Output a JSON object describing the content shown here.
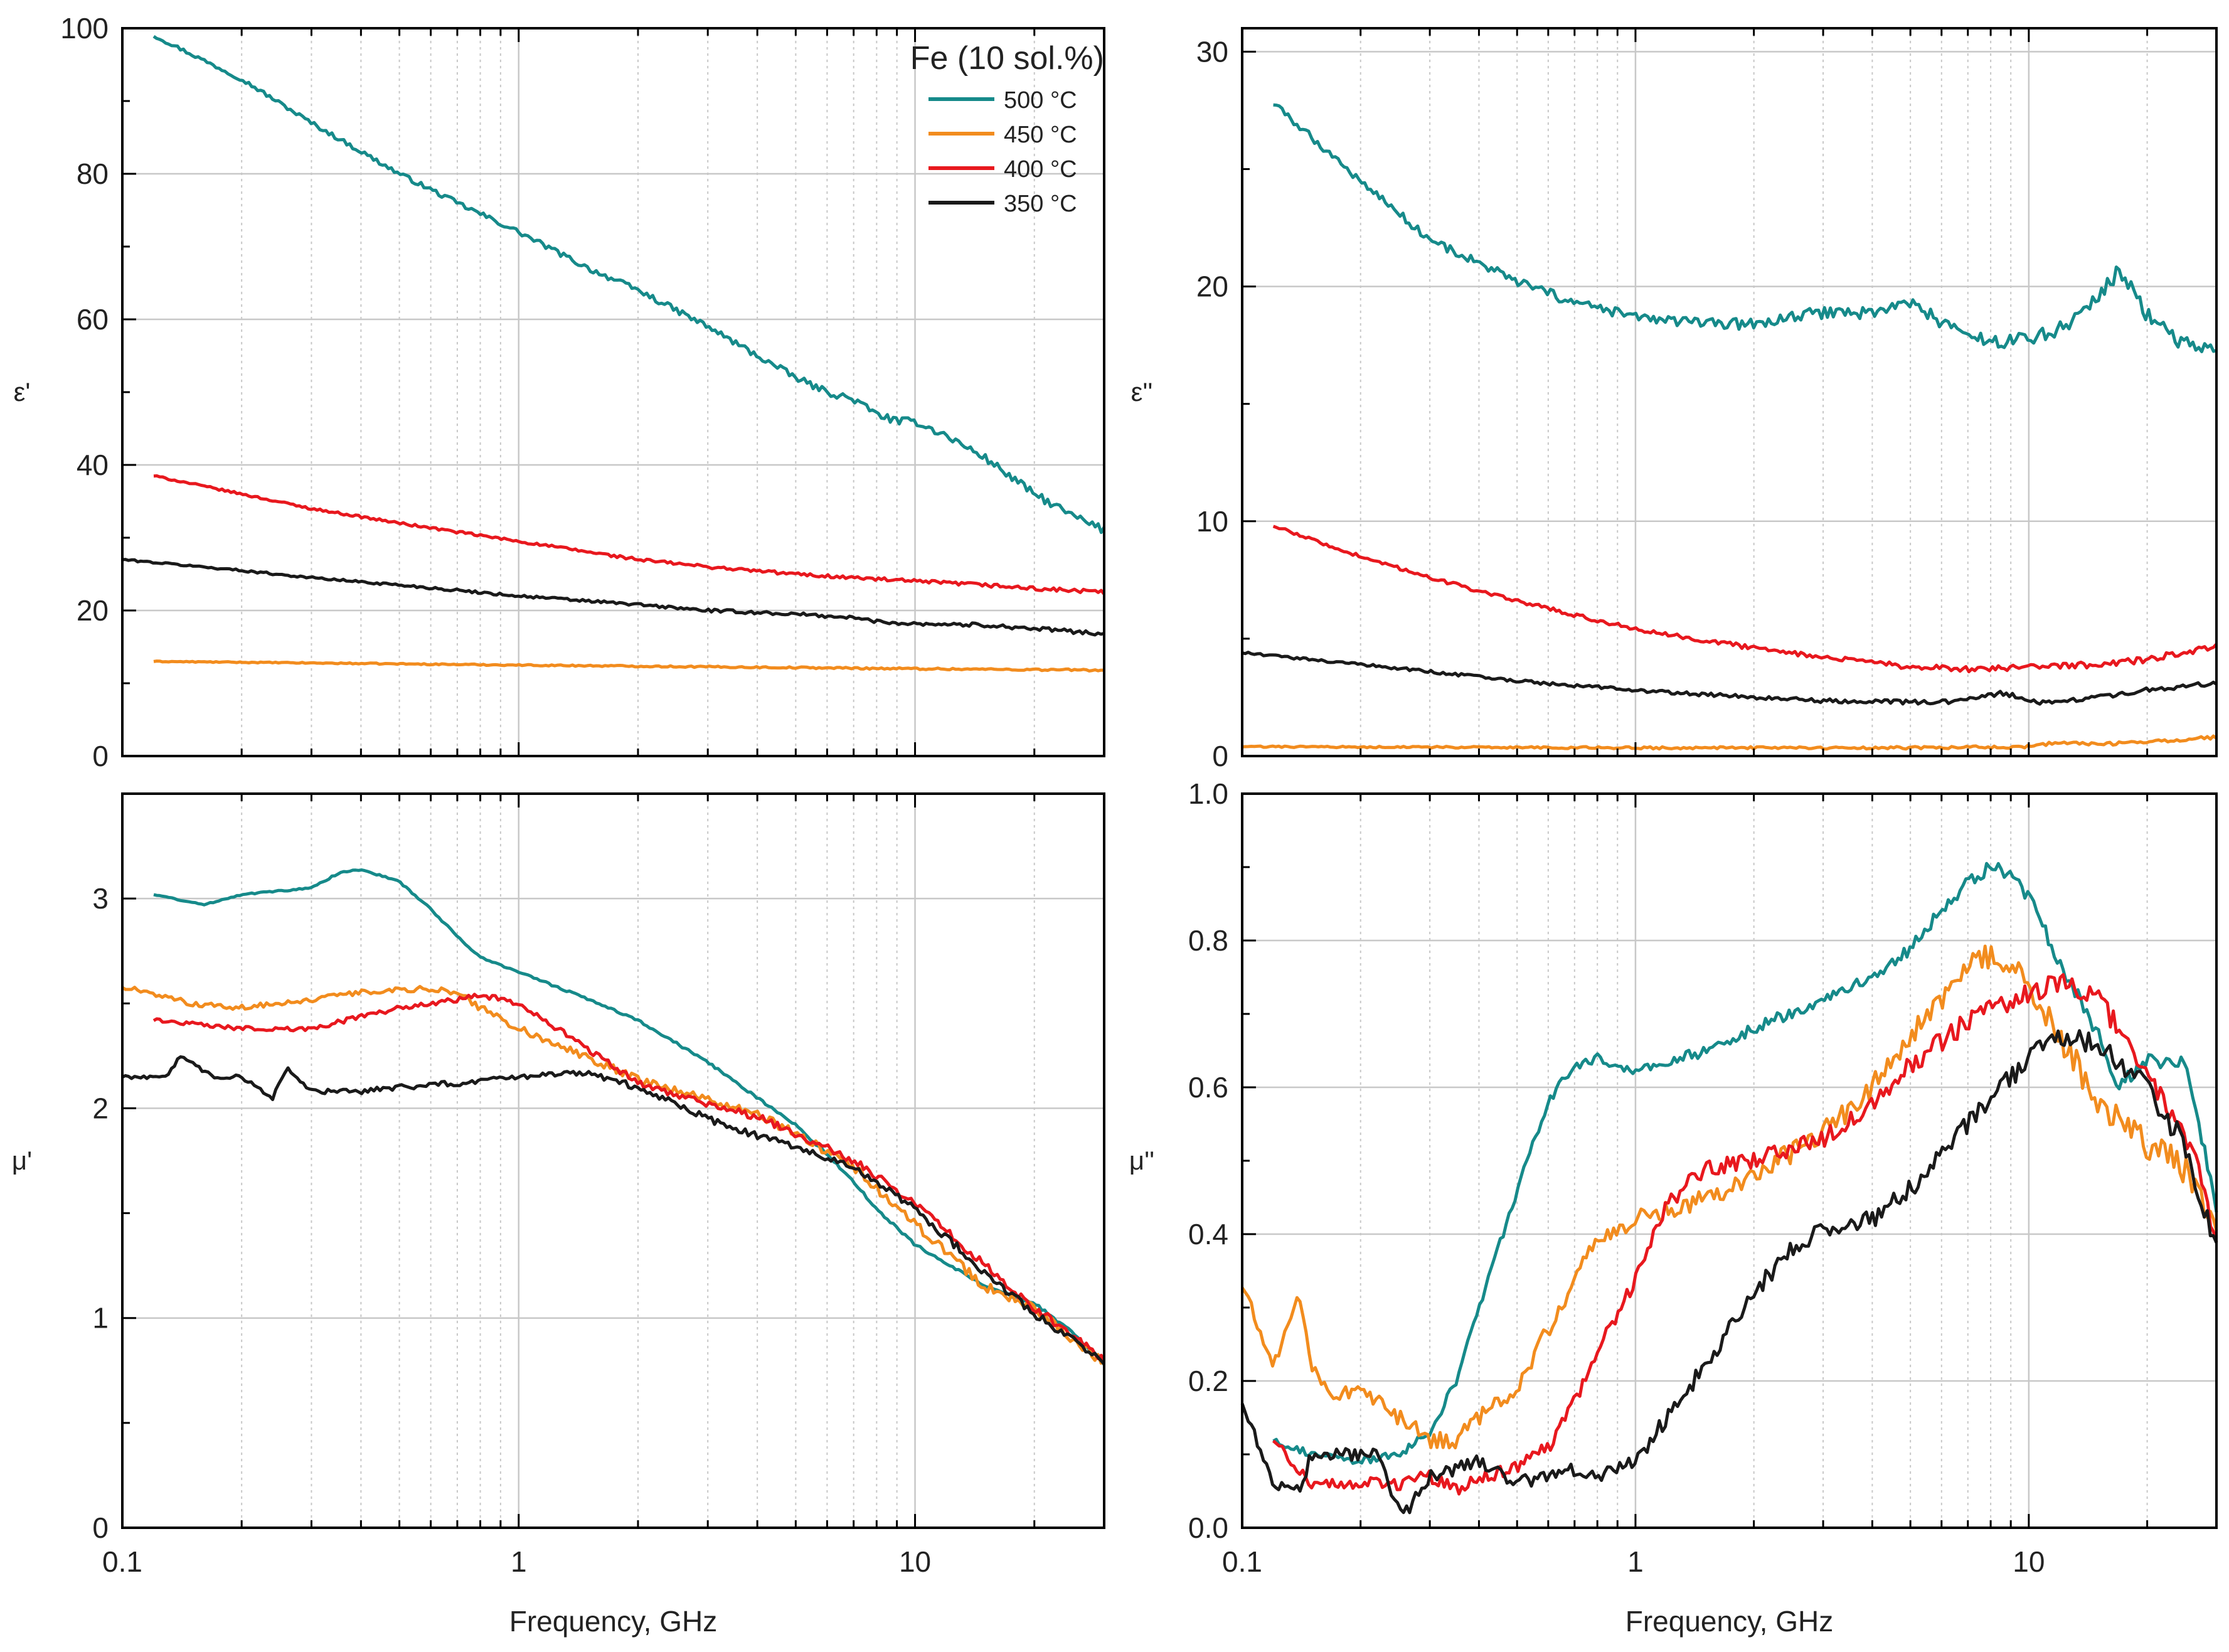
{
  "figure": {
    "legend": {
      "title": "Fe (10 sol.%)",
      "entries": [
        {
          "label": "500 °C",
          "color": "#168A8A"
        },
        {
          "label": "450 °C",
          "color": "#F28C1E"
        },
        {
          "label": "400 °C",
          "color": "#E8181E"
        },
        {
          "label": "350 °C",
          "color": "#1A1A1A"
        }
      ]
    }
  },
  "chart_data": [
    {
      "type": "line",
      "panel": "top-left",
      "ylabel": "ε'",
      "xlabel": "",
      "xscale": "log",
      "xlim": [
        0.1,
        30
      ],
      "ylim": [
        0,
        100
      ],
      "yticks": [
        0,
        20,
        40,
        60,
        80,
        100
      ],
      "xticks": [
        0.1,
        1,
        10
      ],
      "xtick_labels": [],
      "grid": true,
      "legend_placement": "top-right",
      "series": [
        {
          "name": "500 °C",
          "color": "#168A8A",
          "noise": 0.4,
          "x": [
            0.12,
            0.2,
            0.3,
            0.5,
            0.7,
            1,
            1.5,
            2,
            3,
            4,
            5,
            6,
            7,
            8,
            9,
            10,
            12,
            15,
            20,
            25,
            30
          ],
          "y": [
            99,
            93,
            87,
            80,
            76,
            72,
            67,
            64,
            59,
            55,
            52,
            50,
            49,
            47,
            46,
            46,
            44,
            41,
            36,
            33,
            31
          ]
        },
        {
          "name": "450 °C",
          "color": "#F28C1E",
          "noise": 0.1,
          "x": [
            0.12,
            1,
            10,
            30
          ],
          "y": [
            13,
            12.5,
            12,
            11.8
          ]
        },
        {
          "name": "400 °C",
          "color": "#E8181E",
          "noise": 0.2,
          "x": [
            0.12,
            0.2,
            0.3,
            0.5,
            1,
            2,
            3,
            5,
            7,
            10,
            15,
            20,
            30
          ],
          "y": [
            38.5,
            36,
            34,
            32,
            29.5,
            27,
            26,
            25,
            24.5,
            24,
            23.5,
            23,
            22.5
          ]
        },
        {
          "name": "350 °C",
          "color": "#1A1A1A",
          "noise": 0.2,
          "x": [
            0.1,
            0.2,
            0.3,
            0.5,
            1,
            2,
            3,
            5,
            7,
            8,
            9,
            10,
            15,
            20,
            30
          ],
          "y": [
            27,
            25.5,
            24.5,
            23.5,
            22,
            20.8,
            20,
            19.5,
            19,
            18.5,
            18.3,
            18.2,
            18,
            17.5,
            16.8
          ]
        }
      ]
    },
    {
      "type": "line",
      "panel": "top-right",
      "ylabel": "ε''",
      "xlabel": "",
      "xscale": "log",
      "xlim": [
        0.1,
        30
      ],
      "ylim": [
        0,
        31
      ],
      "yticks": [
        0,
        10,
        20,
        30
      ],
      "xticks": [
        0.1,
        1,
        10
      ],
      "xtick_labels": [],
      "grid": true,
      "series": [
        {
          "name": "500 °C",
          "color": "#168A8A",
          "noise": 0.25,
          "x": [
            0.12,
            0.2,
            0.3,
            0.5,
            0.7,
            1,
            1.5,
            2,
            3,
            4,
            5,
            6,
            7,
            8,
            9,
            10,
            12,
            15,
            17,
            20,
            25,
            30
          ],
          "y": [
            27.8,
            24.5,
            22,
            20.2,
            19.3,
            18.7,
            18.4,
            18.4,
            18.9,
            18.9,
            19.3,
            18.5,
            17.9,
            17.6,
            17.7,
            17.8,
            18.2,
            19.5,
            20.7,
            18.8,
            17.5,
            17.2
          ]
        },
        {
          "name": "450 °C",
          "color": "#F28C1E",
          "noise": 0.05,
          "x": [
            0.1,
            1,
            5,
            10,
            12,
            15,
            20,
            30
          ],
          "y": [
            0.4,
            0.35,
            0.35,
            0.4,
            0.6,
            0.5,
            0.6,
            0.8
          ]
        },
        {
          "name": "400 °C",
          "color": "#E8181E",
          "noise": 0.1,
          "x": [
            0.12,
            0.2,
            0.3,
            0.5,
            1,
            2,
            3,
            5,
            7,
            10,
            15,
            20,
            30
          ],
          "y": [
            9.8,
            8.5,
            7.6,
            6.6,
            5.4,
            4.6,
            4.2,
            3.8,
            3.7,
            3.8,
            3.9,
            4.1,
            4.7
          ]
        },
        {
          "name": "350 °C",
          "color": "#1A1A1A",
          "noise": 0.08,
          "x": [
            0.1,
            0.2,
            0.3,
            0.5,
            1,
            2,
            3,
            5,
            6,
            7,
            8,
            8.5,
            9,
            10,
            12,
            15,
            20,
            30
          ],
          "y": [
            4.4,
            3.9,
            3.6,
            3.2,
            2.8,
            2.5,
            2.35,
            2.3,
            2.3,
            2.4,
            2.6,
            2.7,
            2.6,
            2.3,
            2.3,
            2.5,
            2.8,
            3.1
          ]
        }
      ]
    },
    {
      "type": "line",
      "panel": "bottom-left",
      "ylabel": "μ'",
      "xlabel": "Frequency, GHz",
      "xscale": "log",
      "xlim": [
        0.1,
        30
      ],
      "ylim": [
        0,
        3.5
      ],
      "yticks": [
        0,
        1,
        2,
        3
      ],
      "xticks": [
        0.1,
        1,
        10
      ],
      "xtick_labels": [
        "0.1",
        "1",
        "10"
      ],
      "grid": true,
      "series": [
        {
          "name": "500 °C",
          "color": "#168A8A",
          "noise": 0.005,
          "x": [
            0.12,
            0.16,
            0.2,
            0.3,
            0.35,
            0.4,
            0.5,
            0.6,
            0.7,
            0.8,
            1,
            1.5,
            2,
            3,
            4,
            5,
            6,
            7,
            8,
            10,
            15,
            20,
            25,
            30
          ],
          "y": [
            3.02,
            2.97,
            3.02,
            3.05,
            3.12,
            3.14,
            3.08,
            2.95,
            2.82,
            2.72,
            2.65,
            2.52,
            2.42,
            2.22,
            2.05,
            1.92,
            1.78,
            1.65,
            1.52,
            1.35,
            1.15,
            1.07,
            0.93,
            0.78
          ]
        },
        {
          "name": "450 °C",
          "color": "#F28C1E",
          "noise": 0.018,
          "x": [
            0.1,
            0.15,
            0.2,
            0.3,
            0.4,
            0.5,
            0.6,
            0.7,
            0.8,
            1,
            1.5,
            2,
            3,
            4,
            5,
            7,
            10,
            15,
            20,
            30
          ],
          "y": [
            2.58,
            2.5,
            2.48,
            2.52,
            2.55,
            2.57,
            2.57,
            2.55,
            2.48,
            2.38,
            2.24,
            2.14,
            2.04,
            1.97,
            1.88,
            1.72,
            1.45,
            1.15,
            1.05,
            0.78
          ]
        },
        {
          "name": "400 °C",
          "color": "#E8181E",
          "noise": 0.015,
          "x": [
            0.12,
            0.2,
            0.3,
            0.5,
            0.7,
            0.8,
            1,
            1.5,
            2,
            3,
            4,
            5,
            7,
            10,
            15,
            20,
            30
          ],
          "y": [
            2.42,
            2.38,
            2.38,
            2.48,
            2.52,
            2.54,
            2.5,
            2.28,
            2.12,
            2.02,
            1.96,
            1.88,
            1.75,
            1.55,
            1.25,
            1.05,
            0.8
          ]
        },
        {
          "name": "350 °C",
          "color": "#1A1A1A",
          "noise": 0.015,
          "x": [
            0.1,
            0.13,
            0.14,
            0.17,
            0.2,
            0.24,
            0.26,
            0.3,
            0.4,
            0.5,
            0.7,
            1,
            1.5,
            2,
            3,
            4,
            5,
            7,
            10,
            15,
            20,
            30
          ],
          "y": [
            2.15,
            2.15,
            2.25,
            2.15,
            2.15,
            2.05,
            2.2,
            2.08,
            2.08,
            2.1,
            2.12,
            2.15,
            2.17,
            2.1,
            1.95,
            1.87,
            1.82,
            1.72,
            1.52,
            1.22,
            1.02,
            0.8
          ]
        }
      ]
    },
    {
      "type": "line",
      "panel": "bottom-right",
      "ylabel": "μ''",
      "xlabel": "Frequency, GHz",
      "xscale": "log",
      "xlim": [
        0.1,
        30
      ],
      "ylim": [
        0,
        1.0
      ],
      "yticks": [
        0.0,
        0.2,
        0.4,
        0.6,
        0.8,
        1.0
      ],
      "ytick_labels": [
        "0.0",
        "0.2",
        "0.4",
        "0.6",
        "0.8",
        "1.0"
      ],
      "xticks": [
        0.1,
        1,
        10
      ],
      "xtick_labels": [
        "0.1",
        "1",
        "10"
      ],
      "grid": true,
      "series": [
        {
          "name": "500 °C",
          "color": "#168A8A",
          "noise": 0.008,
          "x": [
            0.12,
            0.15,
            0.2,
            0.25,
            0.3,
            0.35,
            0.4,
            0.5,
            0.6,
            0.7,
            0.8,
            1,
            1.5,
            2,
            3,
            4,
            5,
            6,
            7,
            8,
            9,
            10,
            12,
            15,
            17,
            20,
            25,
            30
          ],
          "y": [
            0.12,
            0.1,
            0.09,
            0.1,
            0.13,
            0.2,
            0.3,
            0.46,
            0.58,
            0.63,
            0.64,
            0.62,
            0.65,
            0.68,
            0.72,
            0.75,
            0.79,
            0.84,
            0.88,
            0.9,
            0.89,
            0.86,
            0.77,
            0.67,
            0.6,
            0.64,
            0.63,
            0.44
          ]
        },
        {
          "name": "450 °C",
          "color": "#F28C1E",
          "noise": 0.015,
          "x": [
            0.1,
            0.12,
            0.14,
            0.15,
            0.17,
            0.2,
            0.25,
            0.3,
            0.35,
            0.4,
            0.5,
            0.6,
            0.7,
            0.8,
            1,
            1.5,
            2,
            3,
            4,
            5,
            6,
            7,
            8,
            9,
            10,
            12,
            15,
            20,
            25,
            30
          ],
          "y": [
            0.33,
            0.22,
            0.32,
            0.22,
            0.18,
            0.19,
            0.15,
            0.12,
            0.12,
            0.15,
            0.19,
            0.27,
            0.34,
            0.39,
            0.42,
            0.45,
            0.48,
            0.54,
            0.6,
            0.67,
            0.72,
            0.76,
            0.78,
            0.77,
            0.73,
            0.67,
            0.58,
            0.52,
            0.49,
            0.4
          ]
        },
        {
          "name": "400 °C",
          "color": "#E8181E",
          "noise": 0.012,
          "x": [
            0.12,
            0.15,
            0.2,
            0.25,
            0.3,
            0.35,
            0.4,
            0.5,
            0.6,
            0.7,
            0.8,
            1,
            1.2,
            1.5,
            2,
            3,
            4,
            5,
            7,
            10,
            12,
            15,
            20,
            25,
            30
          ],
          "y": [
            0.12,
            0.06,
            0.06,
            0.06,
            0.07,
            0.05,
            0.07,
            0.08,
            0.11,
            0.17,
            0.24,
            0.34,
            0.44,
            0.49,
            0.5,
            0.53,
            0.58,
            0.63,
            0.69,
            0.73,
            0.74,
            0.72,
            0.62,
            0.54,
            0.4
          ]
        },
        {
          "name": "350 °C",
          "color": "#1A1A1A",
          "noise": 0.012,
          "x": [
            0.1,
            0.12,
            0.14,
            0.15,
            0.2,
            0.22,
            0.24,
            0.26,
            0.3,
            0.4,
            0.5,
            0.6,
            0.7,
            0.8,
            1,
            1.2,
            1.5,
            2,
            2.5,
            3,
            4,
            5,
            7,
            10,
            12,
            15,
            20,
            25,
            30
          ],
          "y": [
            0.17,
            0.06,
            0.05,
            0.1,
            0.1,
            0.1,
            0.05,
            0.02,
            0.07,
            0.09,
            0.06,
            0.07,
            0.08,
            0.07,
            0.09,
            0.15,
            0.22,
            0.32,
            0.38,
            0.41,
            0.42,
            0.46,
            0.55,
            0.64,
            0.67,
            0.66,
            0.6,
            0.52,
            0.38
          ]
        }
      ]
    }
  ]
}
